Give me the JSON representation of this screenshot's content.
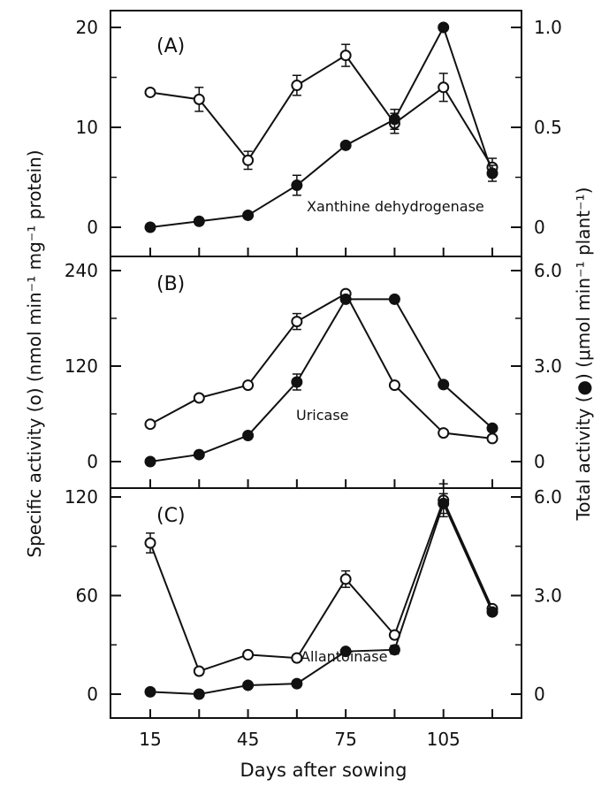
{
  "figure": {
    "ylabel_left": "Specific activity (o) (nmol min⁻¹ mg⁻¹ protein)",
    "ylabel_right": "Total activity (●) (μmol min⁻¹ plant⁻¹)",
    "xlabel": "Days after sowing",
    "x_ticks": [
      "15",
      "45",
      "75",
      "105"
    ]
  },
  "chart_data": [
    {
      "type": "line",
      "panel_label": "(A)",
      "enzyme_label": "Xanthine dehydrogenase",
      "x": [
        15,
        30,
        45,
        60,
        75,
        90,
        105,
        120
      ],
      "ylim_left": [
        0,
        20
      ],
      "ylim_right": [
        0,
        1.0
      ],
      "yticks_left": [
        "0",
        "10",
        "20"
      ],
      "yticks_right": [
        "0",
        "0.5",
        "1.0"
      ],
      "series": [
        {
          "marker": "open",
          "axis": "left",
          "values": [
            13.5,
            12.8,
            6.7,
            14.2,
            17.2,
            10.4,
            14.0,
            6.0
          ],
          "errors": [
            0,
            1.2,
            0.9,
            1.0,
            1.1,
            1.0,
            1.4,
            0.9
          ]
        },
        {
          "marker": "filled",
          "axis": "right",
          "values": [
            0.0,
            0.03,
            0.06,
            0.21,
            0.41,
            0.54,
            1.0,
            0.27
          ],
          "errors": [
            0,
            0,
            0,
            0.05,
            0,
            0.05,
            0,
            0.04
          ]
        }
      ]
    },
    {
      "type": "line",
      "panel_label": "(B)",
      "enzyme_label": "Uricase",
      "x": [
        15,
        30,
        45,
        60,
        75,
        90,
        105,
        120
      ],
      "ylim_left": [
        0,
        240
      ],
      "ylim_right": [
        0,
        6.0
      ],
      "yticks_left": [
        "0",
        "120",
        "240"
      ],
      "yticks_right": [
        "0",
        "3.0",
        "6.0"
      ],
      "series": [
        {
          "marker": "open",
          "axis": "left",
          "values": [
            47,
            80,
            96,
            176,
            211,
            96,
            36,
            29
          ],
          "errors": [
            0,
            0,
            0,
            10,
            0,
            0,
            0,
            0
          ]
        },
        {
          "marker": "filled",
          "axis": "right",
          "values": [
            0,
            0.22,
            0.82,
            2.5,
            5.1,
            5.1,
            2.42,
            1.05
          ],
          "errors": [
            0,
            0,
            0,
            0.25,
            0,
            0,
            0,
            0
          ]
        }
      ]
    },
    {
      "type": "line",
      "panel_label": "(C)",
      "enzyme_label": "Allantoinase",
      "x": [
        15,
        30,
        45,
        60,
        75,
        90,
        105,
        120
      ],
      "ylim_left": [
        0,
        120
      ],
      "ylim_right": [
        0,
        6.0
      ],
      "yticks_left": [
        "0",
        "60",
        "120"
      ],
      "yticks_right": [
        "0",
        "3.0",
        "6.0"
      ],
      "series": [
        {
          "marker": "open",
          "axis": "left",
          "values": [
            92,
            14,
            24,
            22,
            70,
            36,
            118,
            52
          ],
          "errors": [
            6,
            0,
            0,
            0,
            5,
            0,
            10,
            0
          ]
        },
        {
          "marker": "filled",
          "axis": "right",
          "values": [
            0.07,
            0.0,
            0.27,
            0.32,
            1.3,
            1.35,
            5.8,
            2.5
          ],
          "errors": [
            0,
            0,
            0,
            0,
            0,
            0.13,
            0.3,
            0
          ]
        }
      ]
    }
  ]
}
